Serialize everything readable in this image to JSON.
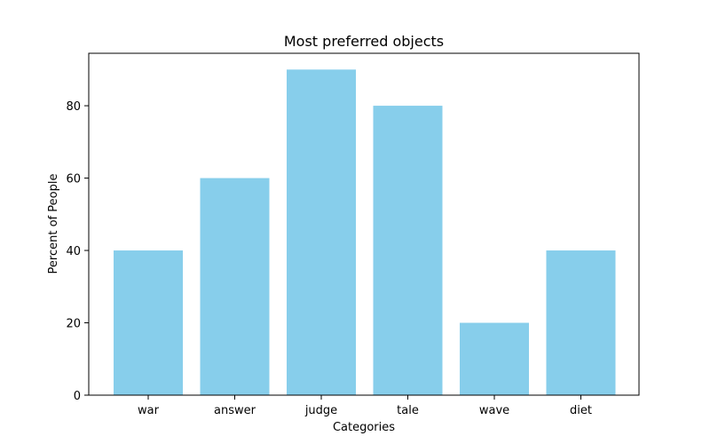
{
  "chart_data": {
    "type": "bar",
    "title": "Most preferred objects",
    "xlabel": "Categories",
    "ylabel": "Percent of People",
    "categories": [
      "war",
      "answer",
      "judge",
      "tale",
      "wave",
      "diet"
    ],
    "values": [
      40,
      60,
      90,
      80,
      20,
      40
    ],
    "ylim": [
      0,
      94.5
    ],
    "yticks": [
      0,
      20,
      40,
      60,
      80
    ],
    "ytick_labels": [
      "0",
      "20",
      "40",
      "60",
      "80"
    ],
    "grid": false,
    "legend": "none",
    "colors": {
      "bar": "#87CEEB",
      "axis": "#000000",
      "background": "#ffffff"
    }
  }
}
